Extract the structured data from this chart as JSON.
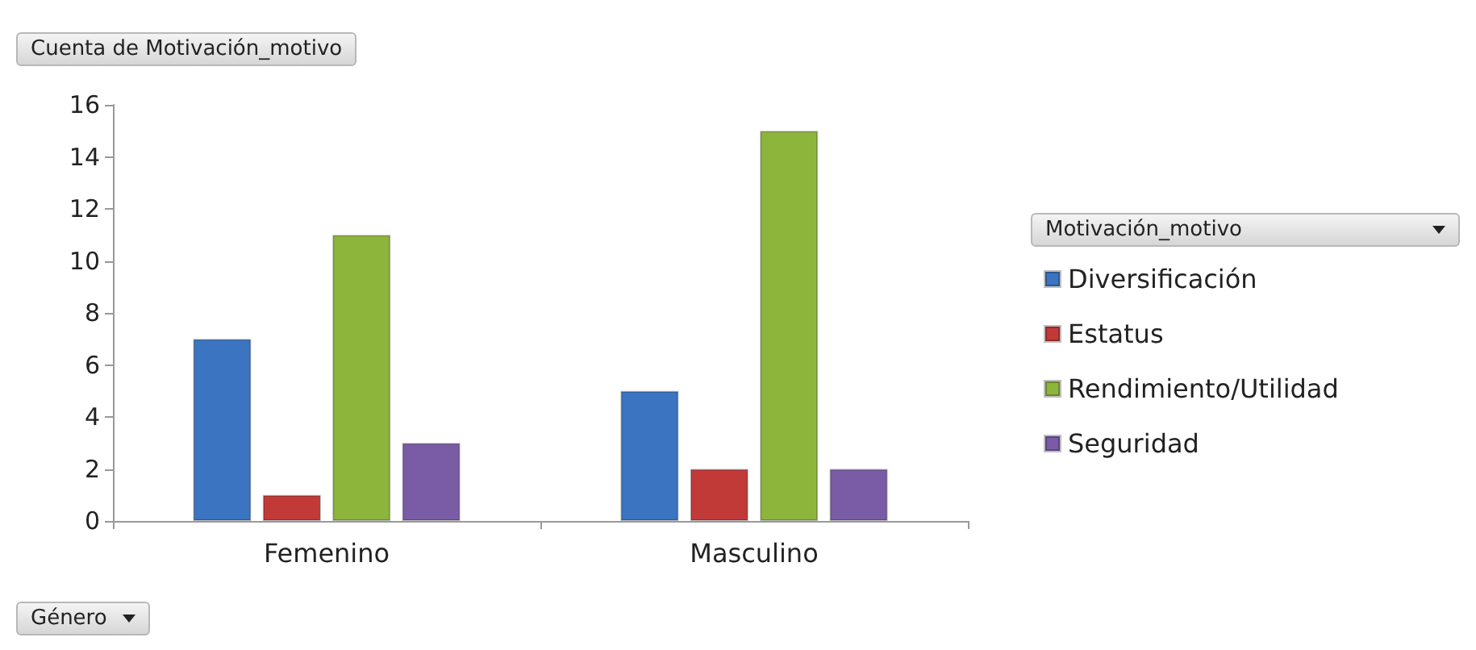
{
  "chart_data": {
    "type": "bar",
    "title": "Cuenta de Motivación_motivo",
    "xlabel": "Género",
    "legend_title": "Motivación_motivo",
    "categories": [
      "Femenino",
      "Masculino"
    ],
    "series": [
      {
        "name": "Diversificación",
        "color": "#3b74c0",
        "values": [
          7,
          5
        ]
      },
      {
        "name": "Estatus",
        "color": "#c23a38",
        "values": [
          1,
          2
        ]
      },
      {
        "name": "Rendimiento/Utilidad",
        "color": "#8db53b",
        "values": [
          11,
          15
        ]
      },
      {
        "name": "Seguridad",
        "color": "#7a5ca6",
        "values": [
          3,
          2
        ]
      }
    ],
    "ylim": [
      0,
      16
    ],
    "yticks": [
      0,
      2,
      4,
      6,
      8,
      10,
      12,
      14,
      16
    ],
    "grid": false,
    "legend": "right"
  }
}
